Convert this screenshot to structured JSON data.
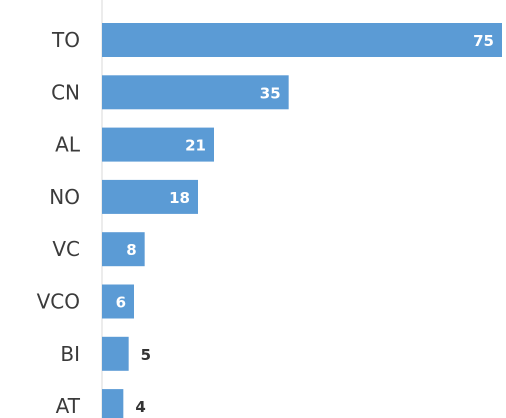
{
  "chart_data": {
    "type": "bar",
    "orientation": "horizontal",
    "categories": [
      "TO",
      "CN",
      "AL",
      "NO",
      "VC",
      "VCO",
      "BI",
      "AT"
    ],
    "values": [
      75,
      35,
      21,
      18,
      8,
      6,
      5,
      4
    ],
    "xlim": [
      0,
      75
    ],
    "grid": false,
    "legend": "none",
    "bar_color": "#5b9bd5",
    "label_inside_color": "#ffffff",
    "label_outside_color": "#333333"
  }
}
